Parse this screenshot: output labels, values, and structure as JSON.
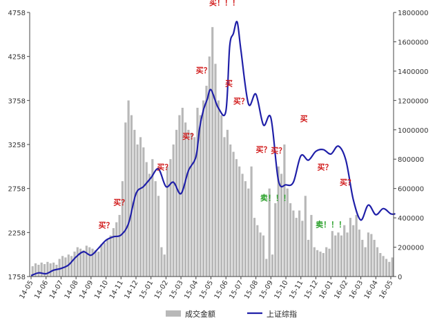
{
  "chart_data": {
    "type": "bar+line",
    "title": "",
    "xlabel": "",
    "ylabel_left": "",
    "ylabel_right": "",
    "ylim_left": [
      1758,
      4758
    ],
    "ylim_right": [
      0,
      1800000
    ],
    "left_ticks": [
      "1758",
      "2258",
      "2758",
      "3258",
      "3758",
      "4258",
      "4758"
    ],
    "right_ticks": [
      "0",
      "200000",
      "400000",
      "600000",
      "800000",
      "1000000",
      "1200000",
      "1400000",
      "1600000",
      "1800000"
    ],
    "categories": [
      "14-05",
      "14-06",
      "14-07",
      "14-08",
      "14-09",
      "14-10",
      "14-11",
      "14-12",
      "15-01",
      "15-02",
      "15-03",
      "15-04",
      "15-05",
      "15-06",
      "15-07",
      "15-08",
      "15-09",
      "15-10",
      "15-11",
      "15-12",
      "16-01",
      "16-02",
      "16-03",
      "16-04",
      "16-05"
    ],
    "grid": false,
    "legend_position": "bottom",
    "series": [
      {
        "name": "成交金额",
        "axis": "right",
        "color": "#b8b8b8",
        "x": [
          0.1,
          0.3,
          0.5,
          0.7,
          0.9,
          1.1,
          1.3,
          1.5,
          1.7,
          1.9,
          2.1,
          2.3,
          2.5,
          2.7,
          2.9,
          3.1,
          3.3,
          3.5,
          3.7,
          3.9,
          4.1,
          4.3,
          4.5,
          4.7,
          4.9,
          5.1,
          5.3,
          5.5,
          5.7,
          5.9,
          6.1,
          6.3,
          6.5,
          6.7,
          6.9,
          7.1,
          7.3,
          7.5,
          7.7,
          7.9,
          8.1,
          8.3,
          8.5,
          8.7,
          8.9,
          9.1,
          9.3,
          9.5,
          9.7,
          9.9,
          10.1,
          10.3,
          10.5,
          10.7,
          10.9,
          11.1,
          11.3,
          11.5,
          11.7,
          11.9,
          12.1,
          12.3,
          12.5,
          12.7,
          12.9,
          13.1,
          13.3,
          13.5,
          13.7,
          13.9,
          14.1,
          14.3,
          14.5,
          14.7,
          14.9,
          15.1,
          15.3,
          15.5,
          15.7,
          15.9,
          16.1,
          16.3,
          16.5,
          16.7,
          16.9,
          17.1,
          17.3,
          17.5,
          17.7,
          17.9,
          18.1,
          18.3,
          18.5,
          18.7,
          18.9,
          19.1,
          19.3,
          19.5,
          19.7,
          19.9,
          20.1,
          20.3,
          20.5,
          20.7,
          20.9,
          21.1,
          21.3,
          21.5,
          21.7,
          21.9,
          22.1,
          22.3,
          22.5,
          22.7,
          22.9,
          23.1,
          23.3,
          23.5,
          23.7,
          23.9,
          24.1
        ],
        "values": [
          70000,
          90000,
          80000,
          95000,
          85000,
          100000,
          90000,
          95000,
          80000,
          120000,
          140000,
          130000,
          150000,
          140000,
          170000,
          200000,
          190000,
          180000,
          210000,
          200000,
          190000,
          180000,
          170000,
          220000,
          230000,
          250000,
          280000,
          330000,
          370000,
          420000,
          650000,
          1050000,
          1200000,
          1100000,
          1000000,
          900000,
          950000,
          880000,
          780000,
          700000,
          800000,
          650000,
          550000,
          200000,
          150000,
          750000,
          800000,
          900000,
          1000000,
          1100000,
          1150000,
          1050000,
          1000000,
          980000,
          950000,
          1150000,
          1100000,
          1200000,
          1300000,
          1500000,
          1700000,
          1450000,
          1200000,
          1100000,
          950000,
          1000000,
          900000,
          850000,
          800000,
          750000,
          700000,
          650000,
          600000,
          750000,
          400000,
          350000,
          300000,
          280000,
          120000,
          600000,
          150000,
          500000,
          750000,
          700000,
          900000,
          600000,
          500000,
          450000,
          400000,
          450000,
          380000,
          550000,
          250000,
          420000,
          200000,
          180000,
          170000,
          160000,
          200000,
          190000,
          310000,
          280000,
          300000,
          280000,
          350000,
          300000,
          400000,
          350000,
          420000,
          320000,
          250000,
          200000,
          300000,
          290000,
          250000,
          200000,
          160000,
          140000,
          120000,
          100000,
          130000
        ]
      },
      {
        "name": "上证综指",
        "axis": "left",
        "color": "#1f1fa8",
        "x": [
          0,
          0.5,
          1,
          1.5,
          2,
          2.5,
          3,
          3.5,
          4,
          4.5,
          5,
          5.5,
          6,
          6.5,
          7,
          7.5,
          8,
          8.5,
          9,
          9.5,
          10,
          10.5,
          11,
          11.25,
          11.5,
          11.75,
          12,
          12.5,
          13,
          13.25,
          13.5,
          13.75,
          14,
          14.5,
          15,
          15.5,
          16,
          16.5,
          17,
          17.5,
          18,
          18.5,
          19,
          19.5,
          20,
          20.5,
          21,
          21.5,
          22,
          22.5,
          23,
          23.5,
          24,
          24.3
        ],
        "values": [
          1768,
          1800,
          1790,
          1830,
          1850,
          1890,
          1980,
          2040,
          2000,
          2080,
          2170,
          2210,
          2230,
          2360,
          2700,
          2780,
          2880,
          2980,
          2780,
          2830,
          2700,
          2960,
          3120,
          3450,
          3650,
          3770,
          3880,
          3670,
          3640,
          4370,
          4520,
          4650,
          4330,
          3720,
          3830,
          3480,
          3560,
          2850,
          2800,
          2830,
          3130,
          3080,
          3180,
          3200,
          3150,
          3240,
          3080,
          2630,
          2400,
          2570,
          2460,
          2530,
          2470,
          2470
        ]
      }
    ],
    "annotations": [
      {
        "text": "买？",
        "x": 5.0,
        "y": 2310,
        "color": "#d11a1a"
      },
      {
        "text": "买？",
        "x": 6.0,
        "y": 2570,
        "color": "#d11a1a"
      },
      {
        "text": "买？",
        "x": 8.9,
        "y": 2970,
        "color": "#d11a1a"
      },
      {
        "text": "买？",
        "x": 10.6,
        "y": 3320,
        "color": "#d11a1a"
      },
      {
        "text": "买？",
        "x": 11.5,
        "y": 4070,
        "color": "#d11a1a"
      },
      {
        "text": "买！！！",
        "x": 12.9,
        "y": 4840,
        "color": "#d11a1a"
      },
      {
        "text": "买",
        "x": 13.2,
        "y": 3920,
        "color": "#d11a1a"
      },
      {
        "text": "买？",
        "x": 14.0,
        "y": 3720,
        "color": "#d11a1a"
      },
      {
        "text": "买？",
        "x": 15.5,
        "y": 3170,
        "color": "#d11a1a"
      },
      {
        "text": "买？",
        "x": 16.5,
        "y": 3160,
        "color": "#d11a1a"
      },
      {
        "text": "买",
        "x": 18.2,
        "y": 3520,
        "color": "#d11a1a"
      },
      {
        "text": "买？",
        "x": 19.6,
        "y": 2970,
        "color": "#d11a1a"
      },
      {
        "text": "买？",
        "x": 21.1,
        "y": 2800,
        "color": "#d11a1a"
      },
      {
        "text": "卖！！！",
        "x": 16.3,
        "y": 2620,
        "color": "#2aa02a"
      },
      {
        "text": "卖！！！",
        "x": 20.0,
        "y": 2320,
        "color": "#2aa02a"
      }
    ]
  }
}
